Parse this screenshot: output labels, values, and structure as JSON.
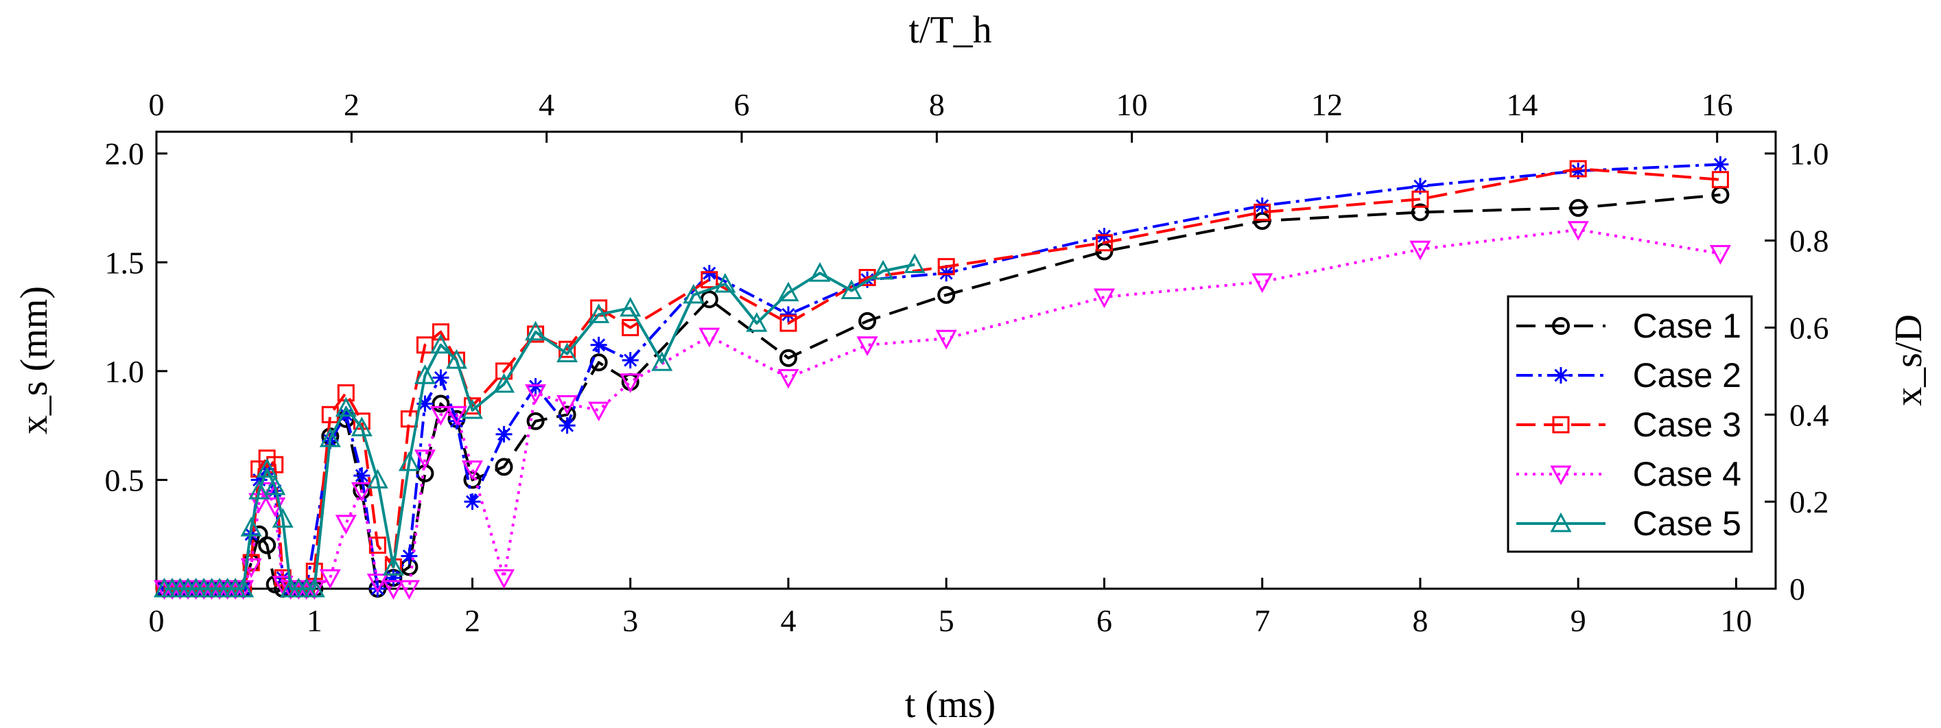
{
  "chart_data": {
    "type": "line",
    "xlabel": "t (ms)",
    "ylabel": "x_s (mm)",
    "top_xlabel": "t/T_h",
    "right_ylabel": "x_s/D",
    "xlim": [
      0,
      10.25
    ],
    "ylim": [
      0,
      2.1
    ],
    "top_xlim": [
      0,
      16.6
    ],
    "right_ylim": [
      0,
      1.05
    ],
    "x_ticks": [
      0,
      1,
      2,
      3,
      4,
      5,
      6,
      7,
      8,
      9,
      10
    ],
    "y_ticks": [
      0.5,
      1.0,
      1.5,
      2.0
    ],
    "y_tick_labels": [
      "0.5",
      "1.0",
      "1.5",
      "2.0"
    ],
    "top_ticks": [
      0,
      2,
      4,
      6,
      8,
      10,
      12,
      14,
      16
    ],
    "right_ticks": [
      0,
      0.2,
      0.4,
      0.6,
      0.8,
      1.0
    ],
    "right_tick_labels": [
      "0",
      "0.2",
      "0.4",
      "0.6",
      "0.8",
      "1.0"
    ],
    "legend_position": "right",
    "series": [
      {
        "name": "Case 1",
        "color": "#000000",
        "marker": "circle",
        "dash": "28,14",
        "x": [
          0.05,
          0.1,
          0.15,
          0.2,
          0.25,
          0.3,
          0.35,
          0.4,
          0.45,
          0.5,
          0.55,
          0.6,
          0.65,
          0.7,
          0.75,
          0.8,
          0.85,
          0.9,
          0.95,
          1.0,
          1.1,
          1.2,
          1.3,
          1.4,
          1.5,
          1.6,
          1.7,
          1.8,
          1.9,
          2.0,
          2.2,
          2.4,
          2.6,
          2.8,
          3.0,
          3.5,
          4.0,
          4.5,
          5.0,
          6.0,
          7.0,
          8.0,
          9.0,
          9.9
        ],
        "y": [
          0,
          0,
          0,
          0,
          0,
          0,
          0,
          0,
          0,
          0,
          0,
          0.12,
          0.25,
          0.2,
          0.02,
          0,
          0,
          0,
          0,
          0,
          0.7,
          0.78,
          0.45,
          0,
          0.05,
          0.1,
          0.53,
          0.85,
          0.78,
          0.5,
          0.56,
          0.77,
          0.8,
          1.04,
          0.95,
          1.33,
          1.06,
          1.23,
          1.35,
          1.55,
          1.69,
          1.73,
          1.75,
          1.81
        ]
      },
      {
        "name": "Case 2",
        "color": "#0000ff",
        "marker": "star",
        "dash": "24,8,5,8",
        "x": [
          0.05,
          0.1,
          0.15,
          0.2,
          0.25,
          0.3,
          0.35,
          0.4,
          0.45,
          0.5,
          0.55,
          0.6,
          0.65,
          0.7,
          0.75,
          0.8,
          0.85,
          0.9,
          0.95,
          1.1,
          1.2,
          1.3,
          1.4,
          1.5,
          1.6,
          1.7,
          1.8,
          1.9,
          2.0,
          2.2,
          2.4,
          2.6,
          2.8,
          3.0,
          3.5,
          4.0,
          4.5,
          5.0,
          6.0,
          7.0,
          8.0,
          9.0,
          9.9
        ],
        "y": [
          0,
          0,
          0,
          0,
          0,
          0,
          0,
          0,
          0,
          0,
          0,
          0.25,
          0.5,
          0.55,
          0.45,
          0.05,
          0,
          0,
          0,
          0.68,
          0.8,
          0.52,
          0,
          0.05,
          0.15,
          0.85,
          0.97,
          0.77,
          0.4,
          0.71,
          0.93,
          0.75,
          1.12,
          1.05,
          1.45,
          1.26,
          1.42,
          1.45,
          1.62,
          1.76,
          1.85,
          1.92,
          1.95
        ]
      },
      {
        "name": "Case 3",
        "color": "#ff0000",
        "marker": "square",
        "dash": "28,12",
        "x": [
          0.05,
          0.1,
          0.15,
          0.2,
          0.25,
          0.3,
          0.35,
          0.4,
          0.45,
          0.5,
          0.55,
          0.6,
          0.65,
          0.7,
          0.75,
          0.8,
          0.85,
          0.9,
          0.95,
          1.0,
          1.1,
          1.2,
          1.3,
          1.4,
          1.5,
          1.6,
          1.7,
          1.8,
          1.9,
          2.0,
          2.2,
          2.4,
          2.6,
          2.8,
          3.0,
          3.5,
          4.0,
          4.5,
          5.0,
          6.0,
          7.0,
          8.0,
          9.0,
          9.9
        ],
        "y": [
          0,
          0,
          0,
          0,
          0,
          0,
          0,
          0,
          0,
          0,
          0,
          0.12,
          0.55,
          0.6,
          0.57,
          0.05,
          0,
          0,
          0,
          0.08,
          0.8,
          0.9,
          0.77,
          0.2,
          0.1,
          0.78,
          1.12,
          1.18,
          1.05,
          0.84,
          1.0,
          1.17,
          1.1,
          1.29,
          1.2,
          1.42,
          1.22,
          1.43,
          1.48,
          1.59,
          1.73,
          1.79,
          1.93,
          1.88
        ]
      },
      {
        "name": "Case 4",
        "color": "#ff00ff",
        "marker": "triangle-down",
        "dash": "4,8",
        "x": [
          0.05,
          0.1,
          0.15,
          0.2,
          0.25,
          0.3,
          0.35,
          0.4,
          0.45,
          0.5,
          0.55,
          0.6,
          0.65,
          0.7,
          0.75,
          0.8,
          0.85,
          0.9,
          0.95,
          1.0,
          1.1,
          1.2,
          1.3,
          1.4,
          1.5,
          1.6,
          1.7,
          1.8,
          1.9,
          2.0,
          2.2,
          2.4,
          2.6,
          2.8,
          3.0,
          3.5,
          4.0,
          4.5,
          5.0,
          6.0,
          7.0,
          8.0,
          9.0,
          9.9
        ],
        "y": [
          0,
          0,
          0,
          0,
          0,
          0,
          0,
          0,
          0,
          0,
          0,
          0.1,
          0.4,
          0.45,
          0.38,
          0.02,
          0,
          0,
          0,
          0,
          0.05,
          0.3,
          0.45,
          0.03,
          0,
          0,
          0.6,
          0.8,
          0.8,
          0.55,
          0.05,
          0.9,
          0.85,
          0.82,
          0.95,
          1.16,
          0.97,
          1.12,
          1.15,
          1.34,
          1.41,
          1.56,
          1.65,
          1.54
        ]
      },
      {
        "name": "Case 5",
        "color": "#008b8b",
        "marker": "triangle-up",
        "dash": "",
        "x": [
          0.05,
          0.1,
          0.15,
          0.2,
          0.25,
          0.3,
          0.35,
          0.4,
          0.45,
          0.5,
          0.55,
          0.6,
          0.65,
          0.7,
          0.75,
          0.8,
          0.85,
          0.9,
          0.95,
          1.0,
          1.1,
          1.2,
          1.3,
          1.4,
          1.5,
          1.6,
          1.7,
          1.8,
          1.9,
          2.0,
          2.2,
          2.4,
          2.6,
          2.8,
          3.0,
          3.2,
          3.4,
          3.6,
          3.8,
          4.0,
          4.2,
          4.4,
          4.6,
          4.8
        ],
        "y": [
          0,
          0,
          0,
          0,
          0,
          0,
          0,
          0,
          0,
          0,
          0,
          0.28,
          0.45,
          0.55,
          0.47,
          0.32,
          0,
          0,
          0,
          0,
          0.69,
          0.83,
          0.74,
          0.5,
          0.1,
          0.58,
          0.98,
          1.12,
          1.05,
          0.82,
          0.94,
          1.18,
          1.08,
          1.26,
          1.29,
          1.04,
          1.35,
          1.4,
          1.22,
          1.36,
          1.45,
          1.37,
          1.46,
          1.49
        ]
      }
    ]
  }
}
